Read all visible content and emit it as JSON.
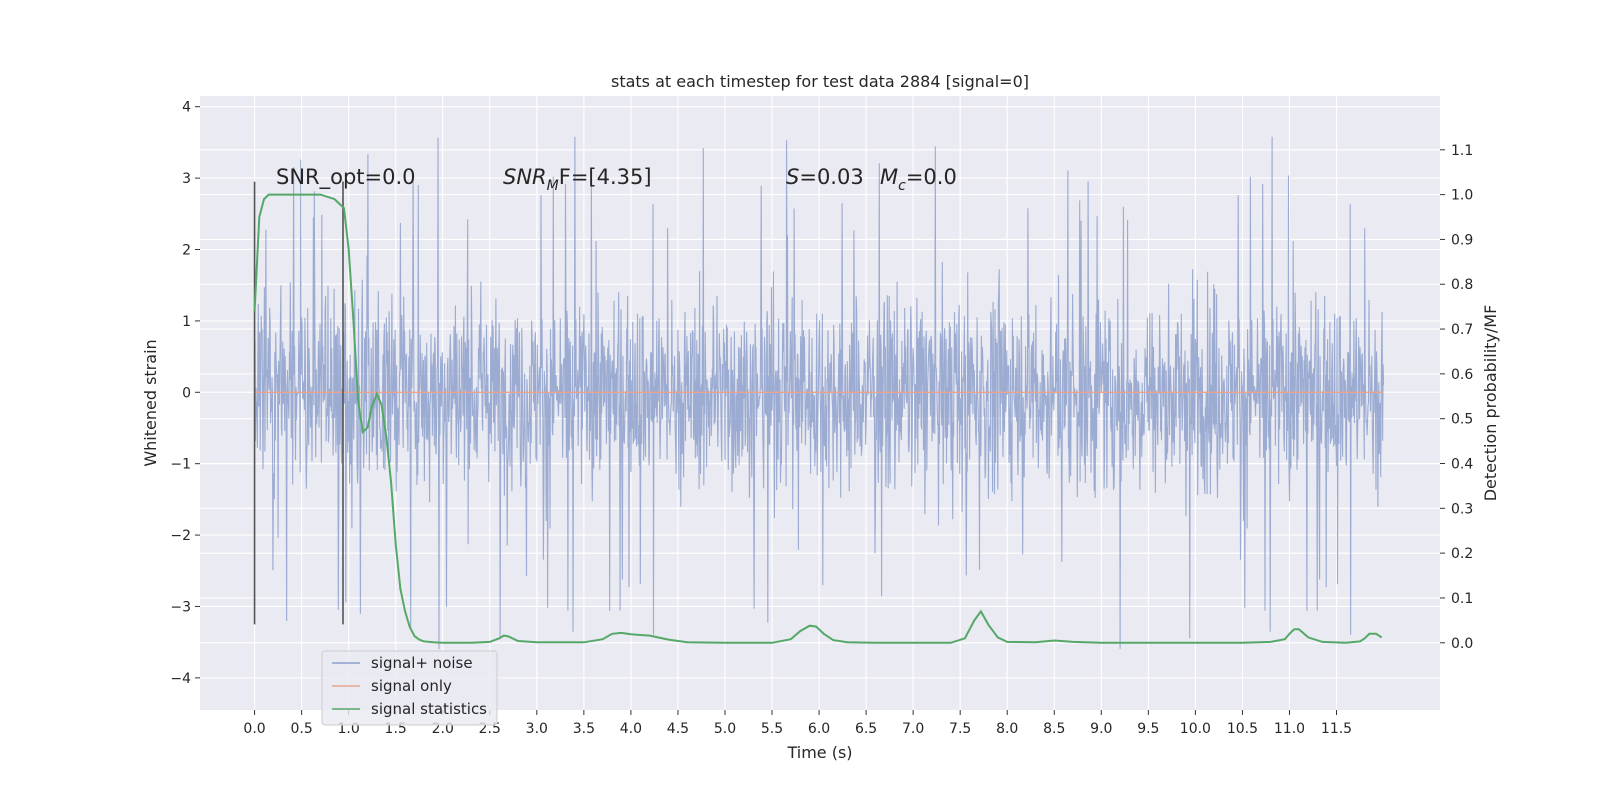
{
  "chart_data": {
    "type": "line",
    "title": "stats at each timestep for test data 2884 [signal=0]",
    "xlabel": "Time (s)",
    "ylabel": "Whitened strain",
    "y2label": "Detection probability/MF",
    "xlim": [
      -0.58,
      12.6
    ],
    "ylim": [
      -4.45,
      4.15
    ],
    "y2lim": [
      -0.15,
      1.22
    ],
    "x_ticks": [
      "0.0",
      "0.5",
      "1.0",
      "1.5",
      "2.0",
      "2.5",
      "3.0",
      "3.5",
      "4.0",
      "4.5",
      "5.0",
      "5.5",
      "6.0",
      "6.5",
      "7.0",
      "7.5",
      "8.0",
      "8.5",
      "9.0",
      "9.5",
      "10.0",
      "10.5",
      "11.0",
      "11.5"
    ],
    "y_ticks": [
      "4",
      "3",
      "2",
      "1",
      "0",
      "−1",
      "−2",
      "−3",
      "−4"
    ],
    "y2_ticks": [
      "1.1",
      "1.0",
      "0.9",
      "0.8",
      "0.7",
      "0.6",
      "0.5",
      "0.4",
      "0.3",
      "0.2",
      "0.1",
      "0.0"
    ],
    "grid": true,
    "legend_position": "lower-left",
    "annotations": {
      "snr_opt": "SNR_opt=0.0",
      "snr_mf_base": "SNR",
      "snr_mf_sub": "M",
      "snr_mf_rest": "F=[4.35]",
      "s_stat": "S",
      "s_value": "=0.03",
      "mc_base": "M",
      "mc_sub": "c",
      "mc_value": "=0.0"
    },
    "vertical_markers": [
      0.0,
      0.94
    ],
    "series": [
      {
        "name": "signal+ noise",
        "color": "#8da0cb",
        "axis": "left",
        "description_range": [
          -4.0,
          3.7
        ],
        "t_start": 0.0,
        "t_end": 12.0
      },
      {
        "name": "signal only",
        "color": "#e8a48f",
        "axis": "left",
        "constant": 0.0,
        "t_start": 0.0,
        "t_end": 12.0
      },
      {
        "name": "signal statistics",
        "color": "#55a868",
        "axis": "right",
        "x": [
          0.0,
          0.05,
          0.1,
          0.15,
          0.2,
          0.3,
          0.5,
          0.7,
          0.85,
          0.95,
          1.0,
          1.05,
          1.1,
          1.15,
          1.2,
          1.25,
          1.3,
          1.35,
          1.4,
          1.45,
          1.5,
          1.55,
          1.6,
          1.65,
          1.7,
          1.75,
          1.8,
          1.9,
          2.0,
          2.3,
          2.5,
          2.6,
          2.65,
          2.7,
          2.8,
          3.0,
          3.5,
          3.7,
          3.8,
          3.9,
          4.0,
          4.2,
          4.4,
          4.6,
          5.0,
          5.5,
          5.7,
          5.8,
          5.9,
          5.97,
          6.05,
          6.15,
          6.3,
          6.6,
          7.0,
          7.4,
          7.55,
          7.65,
          7.72,
          7.8,
          7.9,
          8.0,
          8.3,
          8.5,
          8.7,
          9.0,
          9.5,
          10.0,
          10.5,
          10.8,
          10.95,
          11.0,
          11.05,
          11.1,
          11.2,
          11.35,
          11.6,
          11.75,
          11.8,
          11.85,
          11.92,
          11.98
        ],
        "values": [
          0.74,
          0.95,
          0.99,
          1.0,
          1.0,
          1.0,
          1.0,
          1.0,
          0.99,
          0.97,
          0.88,
          0.72,
          0.54,
          0.47,
          0.48,
          0.53,
          0.555,
          0.53,
          0.46,
          0.36,
          0.22,
          0.12,
          0.07,
          0.035,
          0.015,
          0.007,
          0.003,
          0.001,
          0.0,
          0.0,
          0.002,
          0.01,
          0.016,
          0.014,
          0.004,
          0.001,
          0.001,
          0.008,
          0.02,
          0.022,
          0.019,
          0.016,
          0.007,
          0.001,
          0.0,
          0.0,
          0.008,
          0.026,
          0.038,
          0.036,
          0.02,
          0.006,
          0.001,
          0.0,
          0.0,
          0.0,
          0.01,
          0.05,
          0.07,
          0.04,
          0.012,
          0.002,
          0.001,
          0.005,
          0.002,
          0.0,
          0.0,
          0.0,
          0.0,
          0.002,
          0.008,
          0.02,
          0.03,
          0.03,
          0.012,
          0.002,
          0.0,
          0.003,
          0.01,
          0.02,
          0.02,
          0.012
        ]
      }
    ]
  }
}
